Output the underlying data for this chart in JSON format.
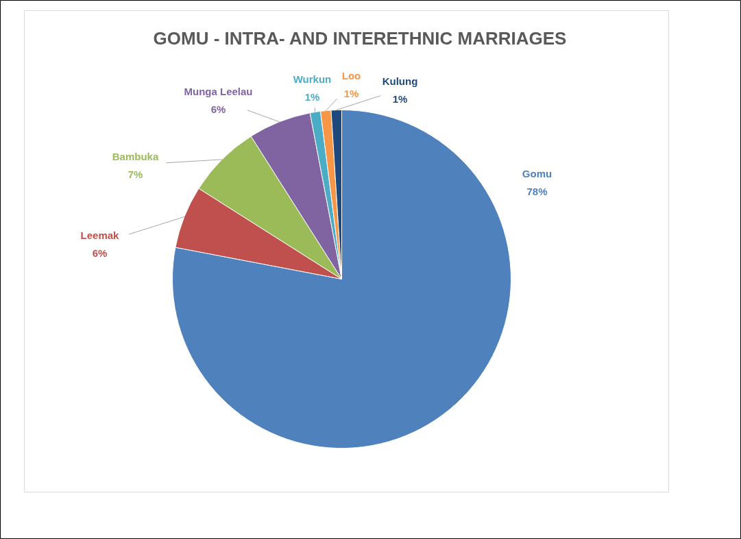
{
  "chart_data": {
    "type": "pie",
    "title": "GOMU - INTRA- AND INTERETHNIC MARRIAGES",
    "categories": [
      "Gomu",
      "Leemak",
      "Bambuka",
      "Munga Leelau",
      "Wurkun",
      "Loo",
      "Kulung"
    ],
    "values": [
      78,
      6,
      7,
      6,
      1,
      1,
      1
    ],
    "colors": [
      "#4f81bd",
      "#c0504d",
      "#9bbb59",
      "#8064a2",
      "#4bacc6",
      "#f79646",
      "#1f497d"
    ],
    "value_labels": [
      "78%",
      "6%",
      "7%",
      "6%",
      "1%",
      "1%",
      "1%"
    ]
  }
}
